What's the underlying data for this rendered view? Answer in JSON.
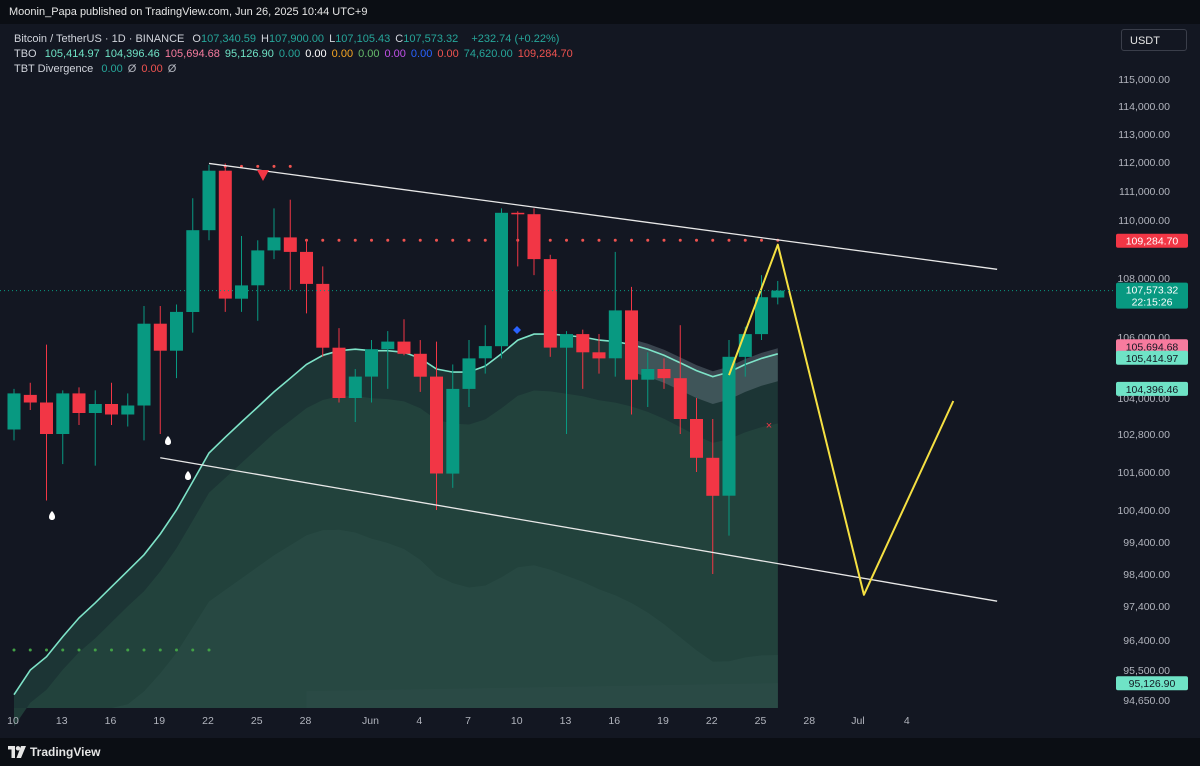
{
  "header": {
    "publisher": "Moonin_Papa published on TradingView.com, Jun 26, 2025 10:44 UTC+9"
  },
  "legend": {
    "symbol": "Bitcoin / TetherUS · 1D · BINANCE",
    "ohlc": [
      {
        "label": "O",
        "value": "107,340.59"
      },
      {
        "label": "H",
        "value": "107,900.00"
      },
      {
        "label": "L",
        "value": "107,105.43"
      },
      {
        "label": "C",
        "value": "107,573.32"
      }
    ],
    "change": "+232.74 (+0.22%)",
    "tbo_label": "TBO",
    "tbo_values": [
      {
        "v": "105,414.97",
        "c": "#6fe3c6"
      },
      {
        "v": "104,396.46",
        "c": "#6fe3c6"
      },
      {
        "v": "105,694.68",
        "c": "#f77b9e"
      },
      {
        "v": "95,126.90",
        "c": "#6fe3c6"
      },
      {
        "v": "0.00",
        "c": "#26a69a"
      },
      {
        "v": "0.00",
        "c": "#ffffff"
      },
      {
        "v": "0.00",
        "c": "#f5a623"
      },
      {
        "v": "0.00",
        "c": "#66bb6a"
      },
      {
        "v": "0.00",
        "c": "#c050e8"
      },
      {
        "v": "0.00",
        "c": "#2962ff"
      },
      {
        "v": "0.00",
        "c": "#ef5350"
      },
      {
        "v": "74,620.00",
        "c": "#26a69a"
      },
      {
        "v": "109,284.70",
        "c": "#ef5350"
      }
    ],
    "div_label": "TBT Divergence",
    "div_values": [
      {
        "v": "0.00",
        "c": "#26a69a"
      },
      {
        "v": "Ø",
        "c": "#b2b5be"
      },
      {
        "v": "0.00",
        "c": "#ef5350"
      },
      {
        "v": "Ø",
        "c": "#b2b5be"
      }
    ]
  },
  "currency": "USDT",
  "footer": {
    "brand": "TradingView"
  },
  "chart_data": {
    "type": "candlestick",
    "symbol": "Bitcoin / TetherUS",
    "interval": "1D",
    "exchange": "BINANCE",
    "ylim": [
      94000,
      116000
    ],
    "y_ticks": [
      "115,000.00",
      "114,000.00",
      "113,000.00",
      "112,000.00",
      "111,000.00",
      "110,000.00",
      "108,000.00",
      "106,000.00",
      "104,000.00",
      "102,800.00",
      "101,600.00",
      "100,400.00",
      "99,400.00",
      "98,400.00",
      "97,400.00",
      "96,400.00",
      "95,500.00",
      "94,650.00"
    ],
    "x_ticks": [
      {
        "label": "10",
        "i": 0
      },
      {
        "label": "13",
        "i": 3
      },
      {
        "label": "16",
        "i": 6
      },
      {
        "label": "19",
        "i": 9
      },
      {
        "label": "22",
        "i": 12
      },
      {
        "label": "25",
        "i": 15
      },
      {
        "label": "28",
        "i": 18
      },
      {
        "label": "Jun",
        "i": 22
      },
      {
        "label": "4",
        "i": 25
      },
      {
        "label": "7",
        "i": 28
      },
      {
        "label": "10",
        "i": 31
      },
      {
        "label": "13",
        "i": 34
      },
      {
        "label": "16",
        "i": 37
      },
      {
        "label": "19",
        "i": 40
      },
      {
        "label": "22",
        "i": 43
      },
      {
        "label": "25",
        "i": 46
      },
      {
        "label": "28",
        "i": 49
      },
      {
        "label": "Jul",
        "i": 52
      },
      {
        "label": "4",
        "i": 55
      }
    ],
    "candles": [
      {
        "date": "May 10",
        "o": 102950,
        "h": 104300,
        "l": 102600,
        "c": 104150
      },
      {
        "date": "May 11",
        "o": 104100,
        "h": 104500,
        "l": 103600,
        "c": 103850
      },
      {
        "date": "May 12",
        "o": 103850,
        "h": 105750,
        "l": 100700,
        "c": 102800
      },
      {
        "date": "May 13",
        "o": 102800,
        "h": 104250,
        "l": 101850,
        "c": 104150
      },
      {
        "date": "May 14",
        "o": 104150,
        "h": 104350,
        "l": 103100,
        "c": 103500
      },
      {
        "date": "May 15",
        "o": 103500,
        "h": 104250,
        "l": 101800,
        "c": 103800
      },
      {
        "date": "May 16",
        "o": 103800,
        "h": 104500,
        "l": 103100,
        "c": 103450
      },
      {
        "date": "May 17",
        "o": 103450,
        "h": 104150,
        "l": 103050,
        "c": 103750
      },
      {
        "date": "May 18",
        "o": 103750,
        "h": 107050,
        "l": 102600,
        "c": 106450
      },
      {
        "date": "May 19",
        "o": 106450,
        "h": 107050,
        "l": 102800,
        "c": 105550
      },
      {
        "date": "May 20",
        "o": 105550,
        "h": 107100,
        "l": 104650,
        "c": 106850
      },
      {
        "date": "May 21",
        "o": 106850,
        "h": 110750,
        "l": 106150,
        "c": 109650
      },
      {
        "date": "May 22",
        "o": 109650,
        "h": 111900,
        "l": 109300,
        "c": 111700
      },
      {
        "date": "May 23",
        "o": 111700,
        "h": 111950,
        "l": 106850,
        "c": 107300
      },
      {
        "date": "May 24",
        "o": 107300,
        "h": 109450,
        "l": 106850,
        "c": 107750
      },
      {
        "date": "May 25",
        "o": 107750,
        "h": 109300,
        "l": 106550,
        "c": 108950
      },
      {
        "date": "May 26",
        "o": 108950,
        "h": 110400,
        "l": 108650,
        "c": 109400
      },
      {
        "date": "May 27",
        "o": 109400,
        "h": 110700,
        "l": 107600,
        "c": 108900
      },
      {
        "date": "May 28",
        "o": 108900,
        "h": 109300,
        "l": 106800,
        "c": 107800
      },
      {
        "date": "May 29",
        "o": 107800,
        "h": 108400,
        "l": 105350,
        "c": 105650
      },
      {
        "date": "May 30",
        "o": 105650,
        "h": 106300,
        "l": 103850,
        "c": 104000
      },
      {
        "date": "May 31",
        "o": 104000,
        "h": 104950,
        "l": 103200,
        "c": 104700
      },
      {
        "date": "Jun 1",
        "o": 104700,
        "h": 105900,
        "l": 103850,
        "c": 105600
      },
      {
        "date": "Jun 2",
        "o": 105600,
        "h": 106200,
        "l": 104300,
        "c": 105850
      },
      {
        "date": "Jun 3",
        "o": 105850,
        "h": 106600,
        "l": 105400,
        "c": 105450
      },
      {
        "date": "Jun 4",
        "o": 105450,
        "h": 105900,
        "l": 104200,
        "c": 104700
      },
      {
        "date": "Jun 5",
        "o": 104700,
        "h": 105850,
        "l": 100400,
        "c": 101550
      },
      {
        "date": "Jun 6",
        "o": 101550,
        "h": 105100,
        "l": 101100,
        "c": 104300
      },
      {
        "date": "Jun 7",
        "o": 104300,
        "h": 105900,
        "l": 103700,
        "c": 105300
      },
      {
        "date": "Jun 8",
        "o": 105300,
        "h": 106400,
        "l": 104800,
        "c": 105700
      },
      {
        "date": "Jun 9",
        "o": 105700,
        "h": 110400,
        "l": 105300,
        "c": 110250
      },
      {
        "date": "Jun 10",
        "o": 110250,
        "h": 110300,
        "l": 108400,
        "c": 110200
      },
      {
        "date": "Jun 11",
        "o": 110200,
        "h": 110400,
        "l": 108100,
        "c": 108650
      },
      {
        "date": "Jun 12",
        "o": 108650,
        "h": 108800,
        "l": 105350,
        "c": 105650
      },
      {
        "date": "Jun 13",
        "o": 105650,
        "h": 106200,
        "l": 102800,
        "c": 106100
      },
      {
        "date": "Jun 14",
        "o": 106100,
        "h": 106250,
        "l": 104300,
        "c": 105500
      },
      {
        "date": "Jun 15",
        "o": 105500,
        "h": 106100,
        "l": 104800,
        "c": 105300
      },
      {
        "date": "Jun 16",
        "o": 105300,
        "h": 108900,
        "l": 104700,
        "c": 106900
      },
      {
        "date": "Jun 17",
        "o": 106900,
        "h": 107700,
        "l": 103450,
        "c": 104600
      },
      {
        "date": "Jun 18",
        "o": 104600,
        "h": 105500,
        "l": 103700,
        "c": 104950
      },
      {
        "date": "Jun 19",
        "o": 104950,
        "h": 105300,
        "l": 104300,
        "c": 104650
      },
      {
        "date": "Jun 20",
        "o": 104650,
        "h": 106400,
        "l": 102800,
        "c": 103300
      },
      {
        "date": "Jun 21",
        "o": 103300,
        "h": 104000,
        "l": 101600,
        "c": 102050
      },
      {
        "date": "Jun 22",
        "o": 102050,
        "h": 103300,
        "l": 98400,
        "c": 100850
      },
      {
        "date": "Jun 23",
        "o": 100850,
        "h": 105900,
        "l": 99600,
        "c": 105350
      },
      {
        "date": "Jun 24",
        "o": 105350,
        "h": 106350,
        "l": 104700,
        "c": 106100
      },
      {
        "date": "Jun 25",
        "o": 106100,
        "h": 108100,
        "l": 105900,
        "c": 107350
      },
      {
        "date": "Jun 26",
        "o": 107340.59,
        "h": 107900,
        "l": 107105.43,
        "c": 107573.32
      }
    ],
    "ema_line": [
      94800,
      95500,
      95900,
      96500,
      97050,
      97500,
      98000,
      98500,
      99000,
      99650,
      100400,
      101300,
      102200,
      102700,
      103200,
      103700,
      104200,
      104650,
      105100,
      105400,
      105550,
      105600,
      105550,
      105550,
      105500,
      105300,
      104950,
      104850,
      104850,
      105050,
      105450,
      105900,
      106100,
      106100,
      106050,
      106000,
      105900,
      105850,
      105750,
      105600,
      105400,
      105150,
      104900,
      104700,
      104850,
      105100,
      105300,
      105450
    ],
    "upper_trendline": {
      "from": {
        "i": 12,
        "v": 111950
      },
      "to": {
        "i": 60.5,
        "v": 108300
      }
    },
    "lower_trendline": {
      "from": {
        "i": 9,
        "v": 102050
      },
      "to": {
        "i": 60.5,
        "v": 97550
      }
    },
    "resistance_dots": {
      "value": 109300,
      "from_i": 17,
      "to_i": 47
    },
    "top_dots": {
      "value": 111850,
      "from_i": 13,
      "to_i": 17
    },
    "support_dots": {
      "value": 96100,
      "from_i": 0,
      "to_i": 12
    },
    "projection_path": [
      {
        "i": 44,
        "v": 104750
      },
      {
        "i": 47,
        "v": 109150
      },
      {
        "i": 52.3,
        "v": 97750
      },
      {
        "i": 57.8,
        "v": 103900
      }
    ],
    "price_labels": [
      {
        "value": 109284.7,
        "text": "109,284.70",
        "color": "#f23645"
      },
      {
        "value": 107573.32,
        "text": "107,573.32",
        "sub": "22:15:26",
        "color": "#089981"
      },
      {
        "value": 105694.68,
        "text": "105,694.68",
        "color": "#f77b9e"
      },
      {
        "value": 105414.97,
        "text": "105,414.97",
        "color": "#6fe3c6"
      },
      {
        "value": 104396.46,
        "text": "104,396.46",
        "color": "#6fe3c6"
      },
      {
        "value": 95126.9,
        "text": "95,126.90",
        "color": "#6fe3c6"
      }
    ]
  }
}
